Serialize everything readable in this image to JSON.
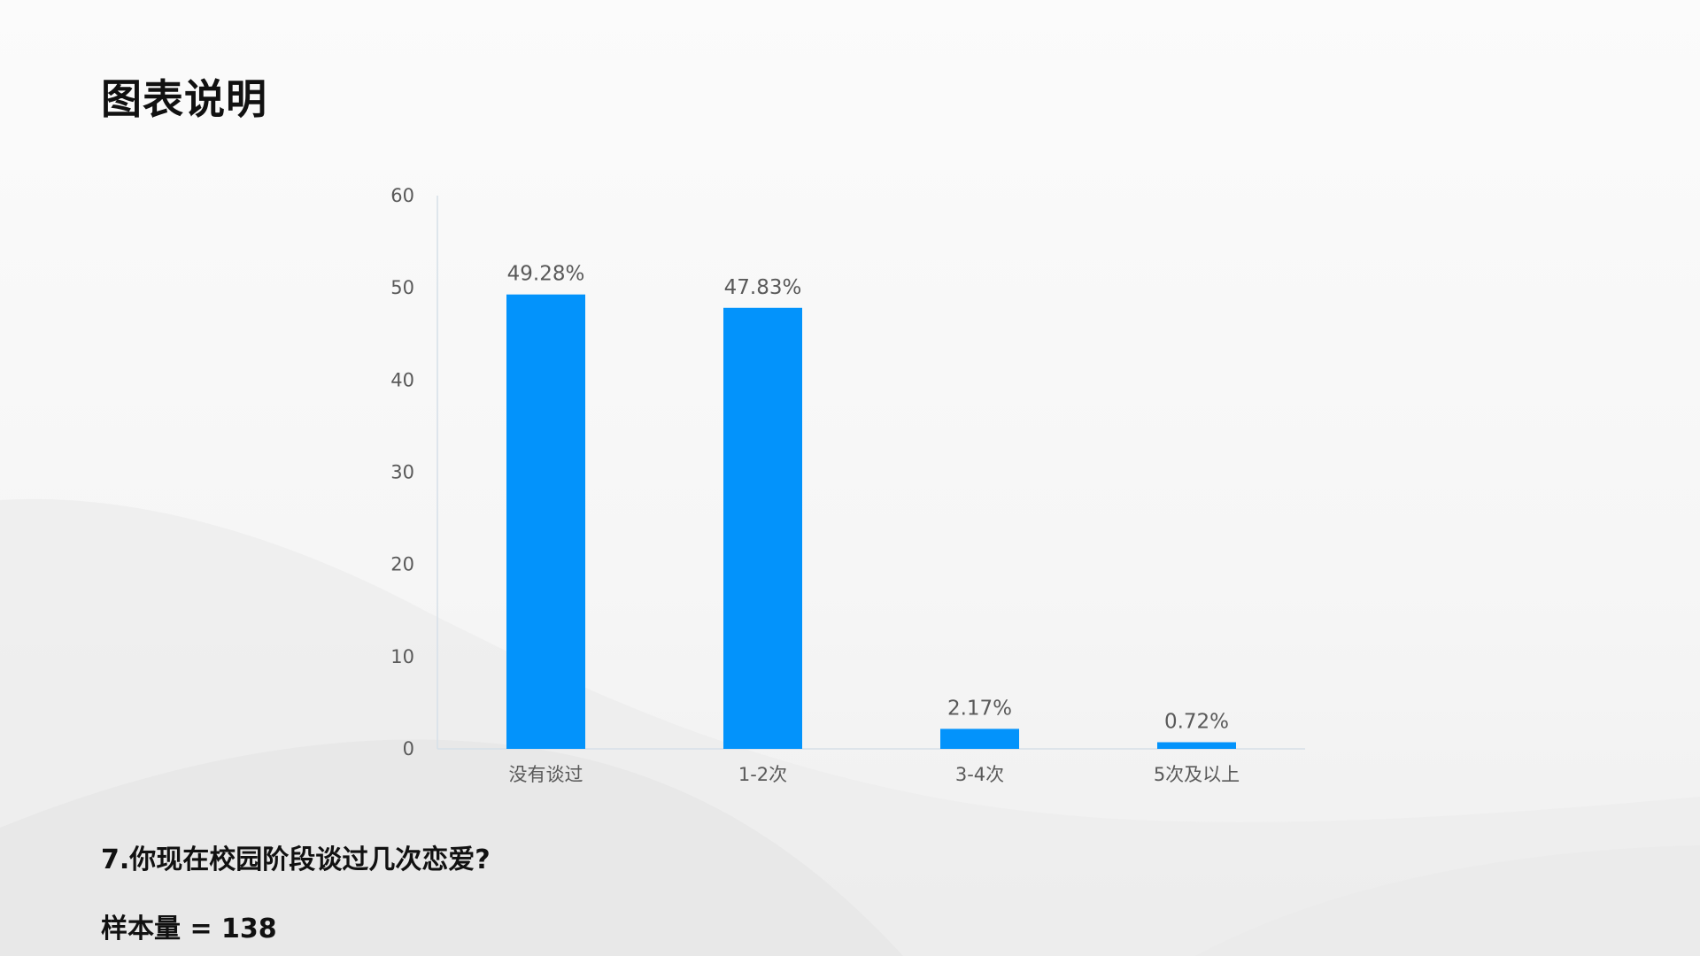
{
  "page": {
    "title": "图表说明"
  },
  "colors": {
    "bar": "#0393fb",
    "axis": "#d6dfe8",
    "text": "#595959"
  },
  "chart_data": {
    "type": "bar",
    "categories": [
      "没有谈过",
      "1-2次",
      "3-4次",
      "5次及以上"
    ],
    "values": [
      49.28,
      47.83,
      2.17,
      0.72
    ],
    "data_labels": [
      "49.28%",
      "47.83%",
      "2.17%",
      "0.72%"
    ],
    "y_ticks": [
      0,
      10,
      20,
      30,
      40,
      50,
      60
    ],
    "ylim": [
      0,
      60
    ],
    "grid": false,
    "legend": "none"
  },
  "footer": {
    "question": "7.你现在校园阶段谈过几次恋爱?",
    "sample": "样本量 = 138"
  }
}
